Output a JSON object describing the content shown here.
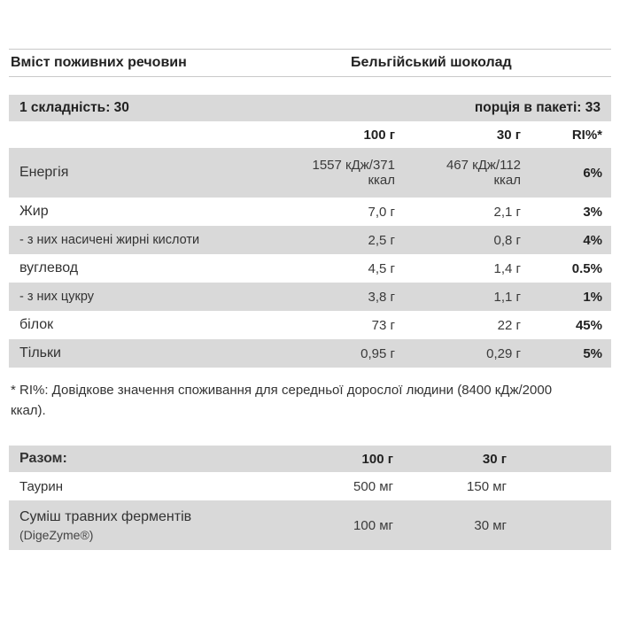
{
  "colors": {
    "row_shade": "#d9d9d9",
    "border": "#c9c9c9",
    "text": "#333333"
  },
  "table1": {
    "title_left": "Вміст поживних речовин",
    "title_right": "Бельгійський шоколад",
    "serving_left": "1 складність: 30",
    "serving_right": "порція в пакеті: 33",
    "col_100": "100 г",
    "col_30": "30 г",
    "col_ri": "RI%*",
    "rows": [
      {
        "label": "Енергія",
        "v100": "1557 кДж/371\nккал",
        "v30": "467 кДж/112\nккал",
        "ri": "6%"
      },
      {
        "label": "Жир",
        "v100": "7,0 г",
        "v30": "2,1 г",
        "ri": "3%"
      },
      {
        "label": "- з них насичені жирні кислоти",
        "v100": "2,5 г",
        "v30": "0,8 г",
        "ri": "4%"
      },
      {
        "label": "вуглевод",
        "v100": "4,5 г",
        "v30": "1,4 г",
        "ri": "0.5%"
      },
      {
        "label": "- з них цукру",
        "v100": "3,8 г",
        "v30": "1,1 г",
        "ri": "1%"
      },
      {
        "label": "білок",
        "v100": "73 г",
        "v30": "22 г",
        "ri": "45%"
      },
      {
        "label": "Тільки",
        "v100": "0,95 г",
        "v30": "0,29 г",
        "ri": "5%"
      }
    ],
    "footnote": "* RI%: Довідкове значення споживання для середньої дорослої людини (8400 кДж/2000 ккал)."
  },
  "table2": {
    "header_label": "Разом:",
    "col_100": "100 г",
    "col_30": "30 г",
    "rows": [
      {
        "label": "Таурин",
        "sublabel": "",
        "v100": "500 мг",
        "v30": "150 мг"
      },
      {
        "label": "Суміш травних ферментів",
        "sublabel": "(DigeZyme®)",
        "v100": "100 мг",
        "v30": "30 мг"
      }
    ]
  }
}
